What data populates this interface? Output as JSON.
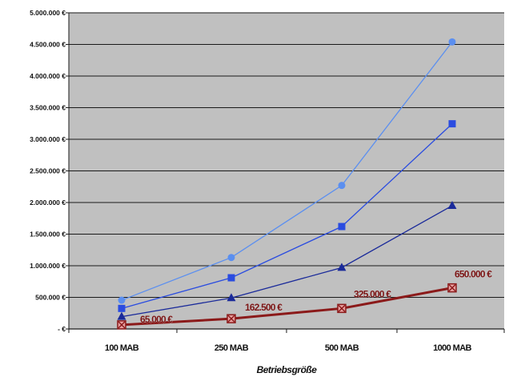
{
  "chart_data": {
    "type": "line",
    "title": "",
    "xlabel": "Betriebsgröße",
    "ylabel": "",
    "categories": [
      "100 MAB",
      "250 MAB",
      "500 MAB",
      "1000 MAB"
    ],
    "ylim": [
      0,
      5000000
    ],
    "yticks": [
      {
        "value": 0,
        "label": "- €"
      },
      {
        "value": 500000,
        "label": "500.000 €"
      },
      {
        "value": 1000000,
        "label": "1.000.000 €"
      },
      {
        "value": 1500000,
        "label": "1.500.000 €"
      },
      {
        "value": 2000000,
        "label": "2.000.000 €"
      },
      {
        "value": 2500000,
        "label": "2.500.000 €"
      },
      {
        "value": 3000000,
        "label": "3.000.000 €"
      },
      {
        "value": 3500000,
        "label": "3.500.000 €"
      },
      {
        "value": 4000000,
        "label": "4.000.000 €"
      },
      {
        "value": 4500000,
        "label": "4.500.000 €"
      },
      {
        "value": 5000000,
        "label": "5.000.000 €"
      }
    ],
    "grid": true,
    "legend": "none",
    "plot_background": "#c0c0c0",
    "series": [
      {
        "marker": "circle",
        "color": "#5b8ff0",
        "values": [
          455000,
          1130000,
          2270000,
          4540000
        ]
      },
      {
        "marker": "square",
        "color": "#2a4ce0",
        "values": [
          325000,
          810000,
          1620000,
          3245000
        ]
      },
      {
        "marker": "triangle",
        "color": "#1a2a9a",
        "values": [
          195000,
          490000,
          970000,
          1950000
        ]
      },
      {
        "marker": "x-square",
        "color": "#8b1a1a",
        "values": [
          65000,
          162500,
          325000,
          650000
        ],
        "data_labels": [
          "65.000 €",
          "162.500 €",
          "325.000 €",
          "650.000 €"
        ]
      }
    ]
  }
}
